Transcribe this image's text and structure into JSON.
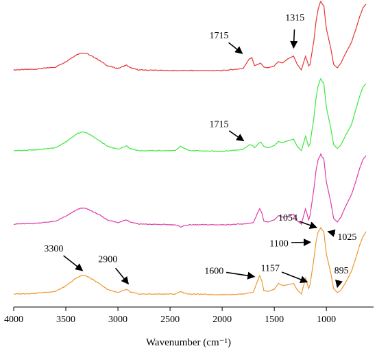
{
  "chart_data": {
    "type": "line",
    "title": "",
    "xlabel": "Wavenumber (cm⁻¹)",
    "ylabel": "",
    "xlim": [
      4000,
      600
    ],
    "x_inverted": true,
    "x_ticks": [
      4000,
      3500,
      3000,
      2500,
      2000,
      1500,
      1000
    ],
    "y_axis_visible": false,
    "grid": false,
    "legend": "none",
    "series": [
      {
        "color": "#e83232",
        "points": [
          [
            4000,
            0.02
          ],
          [
            3800,
            0.03
          ],
          [
            3600,
            0.06
          ],
          [
            3500,
            0.14
          ],
          [
            3400,
            0.24
          ],
          [
            3350,
            0.27
          ],
          [
            3300,
            0.26
          ],
          [
            3200,
            0.18
          ],
          [
            3100,
            0.08
          ],
          [
            3000,
            0.04
          ],
          [
            2950,
            0.07
          ],
          [
            2920,
            0.09
          ],
          [
            2880,
            0.05
          ],
          [
            2800,
            0.02
          ],
          [
            2500,
            0.01
          ],
          [
            2000,
            0.01
          ],
          [
            1800,
            0.04
          ],
          [
            1740,
            0.18
          ],
          [
            1715,
            0.2
          ],
          [
            1690,
            0.08
          ],
          [
            1660,
            0.1
          ],
          [
            1630,
            0.12
          ],
          [
            1600,
            0.06
          ],
          [
            1560,
            0.05
          ],
          [
            1500,
            0.08
          ],
          [
            1460,
            0.14
          ],
          [
            1420,
            0.12
          ],
          [
            1370,
            0.18
          ],
          [
            1315,
            0.22
          ],
          [
            1280,
            0.1
          ],
          [
            1240,
            0.02
          ],
          [
            1200,
            0.22
          ],
          [
            1170,
            0.08
          ],
          [
            1157,
            0.1
          ],
          [
            1120,
            0.45
          ],
          [
            1100,
            0.72
          ],
          [
            1080,
            0.9
          ],
          [
            1060,
            1.0
          ],
          [
            1054,
            1.02
          ],
          [
            1040,
            0.98
          ],
          [
            1025,
            0.96
          ],
          [
            1000,
            0.62
          ],
          [
            960,
            0.35
          ],
          [
            930,
            0.1
          ],
          [
            895,
            0.05
          ],
          [
            860,
            0.12
          ],
          [
            820,
            0.25
          ],
          [
            760,
            0.42
          ],
          [
            720,
            0.6
          ],
          [
            680,
            0.8
          ],
          [
            650,
            0.92
          ],
          [
            620,
            0.98
          ]
        ],
        "annotations": [
          {
            "label": "1715",
            "x": 1715,
            "y": 0.2
          },
          {
            "label": "1315",
            "x": 1315,
            "y": 0.22
          }
        ]
      },
      {
        "color": "#3ae83a",
        "points": [
          [
            4000,
            0.02
          ],
          [
            3800,
            0.03
          ],
          [
            3600,
            0.06
          ],
          [
            3500,
            0.14
          ],
          [
            3400,
            0.25
          ],
          [
            3350,
            0.28
          ],
          [
            3300,
            0.27
          ],
          [
            3200,
            0.18
          ],
          [
            3100,
            0.08
          ],
          [
            3000,
            0.04
          ],
          [
            2950,
            0.07
          ],
          [
            2920,
            0.09
          ],
          [
            2880,
            0.05
          ],
          [
            2800,
            0.02
          ],
          [
            2450,
            0.02
          ],
          [
            2400,
            0.08
          ],
          [
            2360,
            0.05
          ],
          [
            2300,
            0.02
          ],
          [
            2000,
            0.01
          ],
          [
            1800,
            0.04
          ],
          [
            1740,
            0.1
          ],
          [
            1715,
            0.1
          ],
          [
            1690,
            0.06
          ],
          [
            1650,
            0.12
          ],
          [
            1630,
            0.14
          ],
          [
            1600,
            0.08
          ],
          [
            1560,
            0.06
          ],
          [
            1500,
            0.09
          ],
          [
            1460,
            0.15
          ],
          [
            1420,
            0.13
          ],
          [
            1370,
            0.16
          ],
          [
            1315,
            0.18
          ],
          [
            1280,
            0.08
          ],
          [
            1240,
            0.02
          ],
          [
            1200,
            0.22
          ],
          [
            1170,
            0.08
          ],
          [
            1157,
            0.12
          ],
          [
            1120,
            0.48
          ],
          [
            1100,
            0.74
          ],
          [
            1080,
            0.92
          ],
          [
            1060,
            1.0
          ],
          [
            1054,
            1.02
          ],
          [
            1040,
            0.98
          ],
          [
            1025,
            0.96
          ],
          [
            1000,
            0.62
          ],
          [
            960,
            0.35
          ],
          [
            930,
            0.1
          ],
          [
            895,
            0.05
          ],
          [
            860,
            0.1
          ],
          [
            820,
            0.22
          ],
          [
            760,
            0.38
          ],
          [
            720,
            0.58
          ],
          [
            680,
            0.78
          ],
          [
            650,
            0.9
          ],
          [
            620,
            0.95
          ]
        ],
        "annotations": [
          {
            "label": "1715",
            "x": 1715,
            "y": 0.1
          }
        ]
      },
      {
        "color": "#e03aa6",
        "points": [
          [
            4000,
            0.02
          ],
          [
            3800,
            0.03
          ],
          [
            3600,
            0.06
          ],
          [
            3500,
            0.13
          ],
          [
            3400,
            0.22
          ],
          [
            3350,
            0.25
          ],
          [
            3300,
            0.24
          ],
          [
            3200,
            0.17
          ],
          [
            3100,
            0.08
          ],
          [
            3000,
            0.04
          ],
          [
            2950,
            0.07
          ],
          [
            2920,
            0.08
          ],
          [
            2880,
            0.05
          ],
          [
            2800,
            0.02
          ],
          [
            2450,
            0.01
          ],
          [
            2400,
            -0.02
          ],
          [
            2360,
            0.0
          ],
          [
            2300,
            0.01
          ],
          [
            2000,
            0.01
          ],
          [
            1800,
            0.02
          ],
          [
            1700,
            0.04
          ],
          [
            1660,
            0.18
          ],
          [
            1640,
            0.24
          ],
          [
            1620,
            0.18
          ],
          [
            1600,
            0.06
          ],
          [
            1560,
            0.05
          ],
          [
            1500,
            0.08
          ],
          [
            1460,
            0.14
          ],
          [
            1420,
            0.12
          ],
          [
            1370,
            0.13
          ],
          [
            1315,
            0.16
          ],
          [
            1280,
            0.07
          ],
          [
            1240,
            0.02
          ],
          [
            1200,
            0.24
          ],
          [
            1170,
            0.08
          ],
          [
            1157,
            0.14
          ],
          [
            1120,
            0.52
          ],
          [
            1100,
            0.78
          ],
          [
            1080,
            0.94
          ],
          [
            1060,
            1.0
          ],
          [
            1054,
            1.02
          ],
          [
            1040,
            0.98
          ],
          [
            1025,
            0.96
          ],
          [
            1000,
            0.62
          ],
          [
            960,
            0.35
          ],
          [
            930,
            0.1
          ],
          [
            895,
            0.05
          ],
          [
            860,
            0.12
          ],
          [
            820,
            0.26
          ],
          [
            760,
            0.44
          ],
          [
            720,
            0.62
          ],
          [
            680,
            0.82
          ],
          [
            650,
            0.94
          ],
          [
            620,
            1.0
          ]
        ],
        "annotations": []
      },
      {
        "color": "#f0952e",
        "points": [
          [
            4000,
            0.02
          ],
          [
            3800,
            0.03
          ],
          [
            3600,
            0.06
          ],
          [
            3500,
            0.14
          ],
          [
            3400,
            0.26
          ],
          [
            3350,
            0.3
          ],
          [
            3300,
            0.29
          ],
          [
            3200,
            0.2
          ],
          [
            3100,
            0.09
          ],
          [
            3000,
            0.04
          ],
          [
            2950,
            0.07
          ],
          [
            2920,
            0.09
          ],
          [
            2880,
            0.05
          ],
          [
            2800,
            0.02
          ],
          [
            2450,
            0.02
          ],
          [
            2400,
            0.06
          ],
          [
            2360,
            0.03
          ],
          [
            2300,
            0.02
          ],
          [
            2000,
            0.01
          ],
          [
            1800,
            0.02
          ],
          [
            1700,
            0.05
          ],
          [
            1660,
            0.22
          ],
          [
            1640,
            0.3
          ],
          [
            1620,
            0.22
          ],
          [
            1600,
            0.07
          ],
          [
            1560,
            0.06
          ],
          [
            1500,
            0.09
          ],
          [
            1460,
            0.18
          ],
          [
            1420,
            0.15
          ],
          [
            1370,
            0.16
          ],
          [
            1315,
            0.18
          ],
          [
            1280,
            0.08
          ],
          [
            1240,
            0.02
          ],
          [
            1200,
            0.26
          ],
          [
            1170,
            0.1
          ],
          [
            1157,
            0.16
          ],
          [
            1120,
            0.55
          ],
          [
            1100,
            0.8
          ],
          [
            1080,
            0.95
          ],
          [
            1060,
            1.0
          ],
          [
            1054,
            1.02
          ],
          [
            1040,
            0.98
          ],
          [
            1025,
            0.96
          ],
          [
            1000,
            0.62
          ],
          [
            960,
            0.35
          ],
          [
            930,
            0.1
          ],
          [
            895,
            0.04
          ],
          [
            860,
            0.08
          ],
          [
            820,
            0.18
          ],
          [
            760,
            0.36
          ],
          [
            720,
            0.55
          ],
          [
            680,
            0.76
          ],
          [
            650,
            0.88
          ],
          [
            620,
            0.96
          ]
        ],
        "annotations": [
          {
            "label": "3300",
            "x": 3300,
            "y": 0.29
          },
          {
            "label": "2900",
            "x": 2900,
            "y": 0.09
          },
          {
            "label": "1600",
            "x": 1650,
            "y": 0.24
          },
          {
            "label": "1157",
            "x": 1157,
            "y": 0.16
          },
          {
            "label": "1100",
            "x": 1100,
            "y": 0.8
          },
          {
            "label": "1054",
            "x": 1054,
            "y": 1.02
          },
          {
            "label": "1025",
            "x": 1025,
            "y": 0.96
          },
          {
            "label": "895",
            "x": 895,
            "y": 0.04
          }
        ]
      }
    ]
  }
}
